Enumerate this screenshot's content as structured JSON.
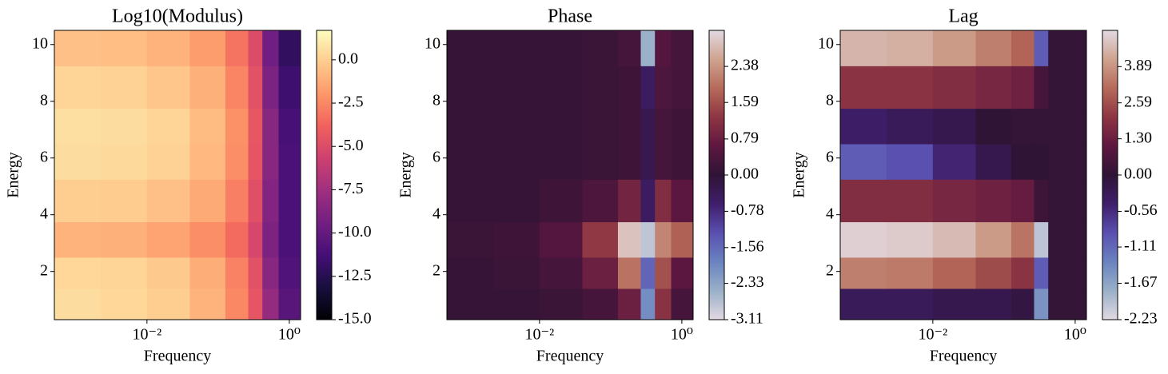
{
  "chart_data": [
    {
      "type": "heatmap",
      "title": "Log10(Modulus)",
      "xlabel": "Frequency",
      "ylabel": "Energy",
      "log_x": true,
      "x": [
        0.001,
        0.005,
        0.02,
        0.08,
        0.2,
        0.35,
        0.5,
        1.0
      ],
      "y": [
        0.8,
        2,
        3,
        4.5,
        6,
        7,
        8.5,
        10
      ],
      "z": [
        [
          0.5,
          0.3,
          0,
          -1,
          -2.5,
          -4.5,
          -8,
          -10.5
        ],
        [
          0.3,
          0.2,
          -0.2,
          -1.2,
          -2.7,
          -4.7,
          -8.5,
          -10.8
        ],
        [
          -1,
          -1.1,
          -1.5,
          -2.3,
          -3.5,
          -5.3,
          -9,
          -11
        ],
        [
          0,
          -0.1,
          -0.5,
          -1.3,
          -2.8,
          -4.8,
          -8.7,
          -11
        ],
        [
          0.5,
          0.4,
          0.1,
          -0.8,
          -2.3,
          -4.5,
          -8.5,
          -11
        ],
        [
          0.6,
          0.5,
          0.2,
          -0.7,
          -2.2,
          -4.4,
          -8.5,
          -11.2
        ],
        [
          0.2,
          0.1,
          -0.3,
          -1.1,
          -2.6,
          -4.7,
          -9,
          -11.5
        ],
        [
          -0.5,
          -0.6,
          -1,
          -1.8,
          -3.2,
          -5,
          -9.5,
          -12
        ]
      ],
      "xlim": [
        0.0005,
        1.44
      ],
      "ylim": [
        0.3,
        10.5
      ],
      "xticks": [
        {
          "value": 0.01,
          "label": "10⁻²"
        },
        {
          "value": 1,
          "label": "10⁰"
        }
      ],
      "yticks": [
        2,
        4,
        6,
        8,
        10
      ],
      "colorbar": {
        "clim": [
          -15,
          1.7
        ],
        "ticks": [
          {
            "value": 0,
            "label": "0.0"
          },
          -2.5,
          {
            "value": -5,
            "label": "-5.0"
          },
          -7.5,
          {
            "value": -10,
            "label": "-10.0"
          },
          -12.5,
          {
            "value": -15,
            "label": "-15.0"
          }
        ],
        "colormap": [
          "#000004",
          "#180f3d",
          "#440f76",
          "#721f81",
          "#9e2f7f",
          "#cd4071",
          "#f1605d",
          "#fd9668",
          "#feca8d",
          "#fcfdbf"
        ]
      }
    },
    {
      "type": "heatmap",
      "title": "Phase",
      "xlabel": "Frequency",
      "ylabel": "Energy",
      "log_x": true,
      "x": [
        0.001,
        0.005,
        0.02,
        0.08,
        0.2,
        0.35,
        0.5,
        1.0
      ],
      "y": [
        0.8,
        2,
        3,
        4.5,
        6,
        7,
        8.5,
        10
      ],
      "z": [
        [
          0.1,
          0.1,
          0.15,
          0.3,
          0.8,
          -2,
          1.2,
          0.3
        ],
        [
          0.1,
          0.15,
          0.3,
          0.8,
          2,
          -1.5,
          1.6,
          0.6
        ],
        [
          0.15,
          0.2,
          0.5,
          1.3,
          2.9,
          -2.8,
          2.2,
          1.8
        ],
        [
          0.1,
          0.1,
          0.2,
          0.4,
          0.9,
          -0.5,
          1.1,
          0.6
        ],
        [
          0.1,
          0.1,
          0.1,
          0.15,
          0.2,
          -0.3,
          0.3,
          0.2
        ],
        [
          0.1,
          0.1,
          0.1,
          0.15,
          0.2,
          -0.3,
          0.3,
          0.2
        ],
        [
          0.1,
          0.1,
          0.1,
          0.15,
          0.2,
          -0.5,
          0.4,
          0.3
        ],
        [
          0.1,
          0.1,
          0.1,
          0.15,
          0.3,
          -2.5,
          0.5,
          0.3
        ]
      ],
      "xlim": [
        0.0005,
        1.44
      ],
      "ylim": [
        0.3,
        10.5
      ],
      "xticks": [
        {
          "value": 0.01,
          "label": "10⁻²"
        },
        {
          "value": 1,
          "label": "10⁰"
        }
      ],
      "yticks": [
        2,
        4,
        6,
        8,
        10
      ],
      "colorbar": {
        "clim": [
          -3.11,
          3.17
        ],
        "center": 0,
        "ticks": [
          2.38,
          1.59,
          0.79,
          {
            "value": 0,
            "label": "0.00"
          },
          -0.78,
          -1.56,
          -2.33,
          -3.11
        ],
        "colormap": [
          "#e2d9e2",
          "#9ab0c8",
          "#6a83c0",
          "#5a4fb0",
          "#3f1e6b",
          "#2f1436",
          "#5e1740",
          "#8e3543",
          "#b66a5a",
          "#cfa38f",
          "#e2d9e2"
        ]
      }
    },
    {
      "type": "heatmap",
      "title": "Lag",
      "xlabel": "Frequency",
      "ylabel": "Energy",
      "log_x": true,
      "x": [
        0.001,
        0.005,
        0.02,
        0.08,
        0.2,
        0.35,
        0.5,
        1.0
      ],
      "y": [
        0.8,
        2,
        3,
        4.5,
        6,
        7,
        8.5,
        10
      ],
      "z": [
        [
          -0.3,
          -0.3,
          -0.2,
          -0.2,
          -0.1,
          -1.5,
          0.1,
          0.1
        ],
        [
          3.5,
          3.4,
          3,
          2.5,
          2,
          -1,
          0.1,
          0.1
        ],
        [
          5,
          4.9,
          4.6,
          4,
          3.3,
          -2,
          0.1,
          0.1
        ],
        [
          1.8,
          1.8,
          1.6,
          1.4,
          1.2,
          0.3,
          0.1,
          0.1
        ],
        [
          -1,
          -0.9,
          -0.5,
          -0.2,
          0,
          0,
          0.1,
          0.1
        ],
        [
          -0.4,
          -0.3,
          -0.2,
          0,
          0.1,
          0.1,
          0.1,
          0.1
        ],
        [
          2,
          2,
          1.8,
          1.6,
          1.4,
          0.5,
          0.1,
          0.1
        ],
        [
          4.5,
          4.4,
          4,
          3.5,
          3,
          -1,
          0.1,
          0.1
        ]
      ],
      "xlim": [
        0.0005,
        1.44
      ],
      "ylim": [
        0.3,
        10.5
      ],
      "xticks": [
        {
          "value": 0.01,
          "label": "10⁻²"
        },
        {
          "value": 1,
          "label": "10⁰"
        }
      ],
      "yticks": [
        2,
        4,
        6,
        8,
        10
      ],
      "colorbar": {
        "clim": [
          -2.23,
          5.19
        ],
        "center": 0,
        "ticks": [
          3.89,
          2.59,
          {
            "value": 1.3,
            "label": "1.30"
          },
          {
            "value": 0,
            "label": "0.00"
          },
          -0.56,
          -1.11,
          -1.67,
          -2.23
        ],
        "colormap": [
          "#e2d9e2",
          "#9ab0c8",
          "#6a83c0",
          "#5a4fb0",
          "#3f1e6b",
          "#2f1436",
          "#5e1740",
          "#8e3543",
          "#b66a5a",
          "#cfa38f",
          "#e2d9e2"
        ]
      }
    }
  ]
}
